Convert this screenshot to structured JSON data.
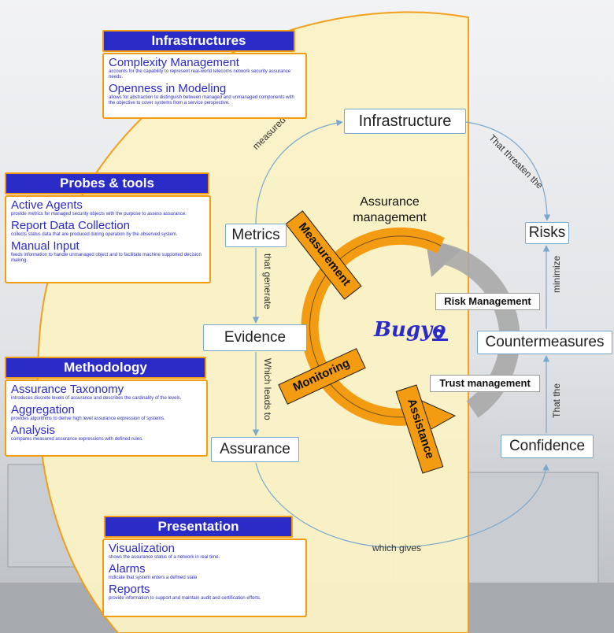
{
  "center": {
    "title_line1": "Assurance",
    "title_line2": "management",
    "logo_text": "Bugyo"
  },
  "cycle": {
    "measurement": "Measurement",
    "monitoring": "Monitoring",
    "assistance": "Assistance",
    "risk_management": "Risk Management",
    "trust_management": "Trust management"
  },
  "nodes": {
    "infrastructure": "Infrastructure",
    "metrics": "Metrics",
    "evidence": "Evidence",
    "assurance": "Assurance",
    "risks": "Risks",
    "countermeasures": "Countermeasures",
    "confidence": "Confidence"
  },
  "edges": {
    "measured_by": "measured by",
    "that_threaten": "That threaten the",
    "that_generate": "that generate",
    "which_leads_to": "Which leads to",
    "minimize": "minimize",
    "that_the": "That the",
    "which_gives": "which gives"
  },
  "panels": {
    "infrastructures": {
      "header": "Infrastructures",
      "items": [
        {
          "title": "Complexity Management",
          "desc": "accounts for the capability to represent real-world telecoms network security assurance needs."
        },
        {
          "title": "Openness in Modeling",
          "desc": "allows for abstraction to distinguish between managed and unmanaged components with the objective to cover systems from a service perspective."
        }
      ]
    },
    "probes": {
      "header": "Probes & tools",
      "items": [
        {
          "title": "Active Agents",
          "desc": "provide metrics for managed security objects with the purpose to assess assurance."
        },
        {
          "title": "Report Data Collection",
          "desc": "collects status data that are produced during operation by the observed system."
        },
        {
          "title": "Manual Input",
          "desc": "feeds information to handle unmanaged object and to facilitate machine supported decision making."
        }
      ]
    },
    "methodology": {
      "header": "Methodology",
      "items": [
        {
          "title": "Assurance Taxonomy",
          "desc": "introduces discrete levels of assurance and describes the cardinality of the levels."
        },
        {
          "title": "Aggregation",
          "desc": "provides algorithms to derive high level assurance expression of systems."
        },
        {
          "title": "Analysis",
          "desc": "compares measured assurance expressions with defined rules."
        }
      ]
    },
    "presentation": {
      "header": "Presentation",
      "items": [
        {
          "title": "Visualization",
          "desc": "shows the assurance status of a network in real time."
        },
        {
          "title": "Alarms",
          "desc": "indicate that system enters a defined state"
        },
        {
          "title": "Reports",
          "desc": "provide information to support and maintain audit and certification efforts."
        }
      ]
    }
  },
  "colors": {
    "panel_header": "#2b2bc8",
    "panel_border": "#f39c12",
    "cycle_orange": "#f39c12",
    "cycle_gray": "#a9a9a9",
    "fan_yellow": "#fbf3c6",
    "connector_blue": "#7aa7cc"
  }
}
